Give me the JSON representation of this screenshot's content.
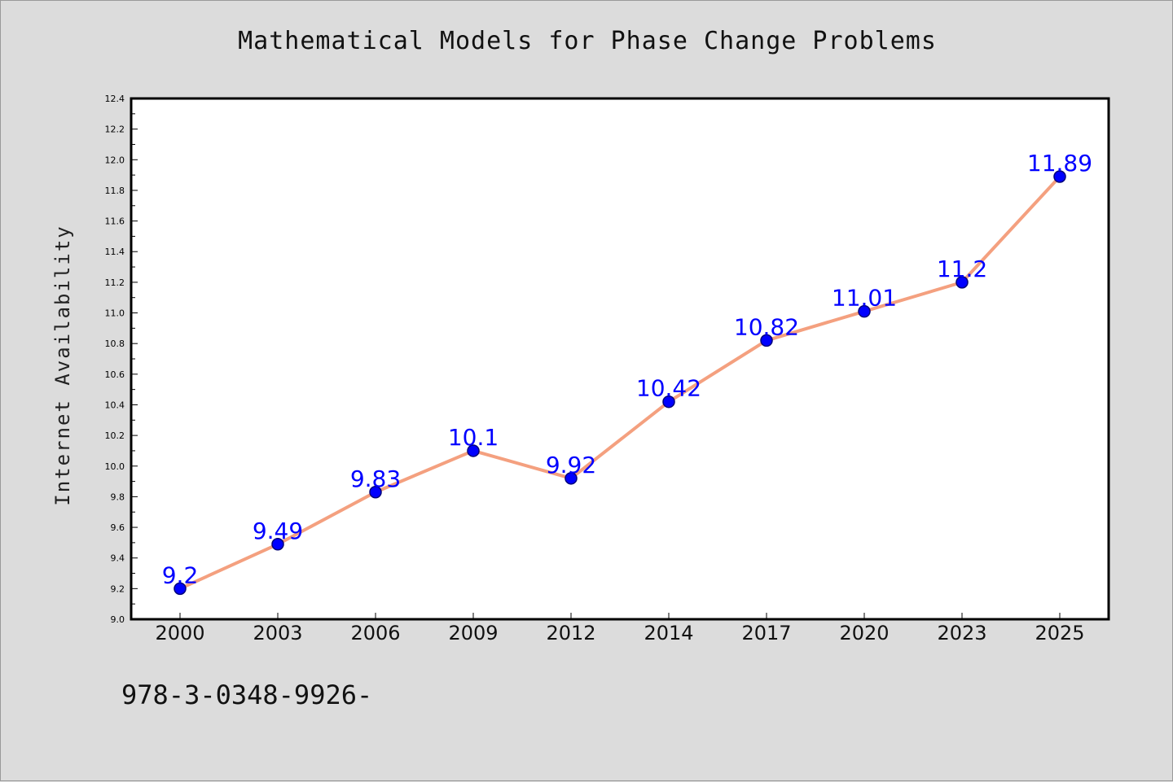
{
  "chart_data": {
    "type": "line",
    "title": "Mathematical Models for Phase Change Problems",
    "xlabel": "",
    "ylabel": "Internet Availability",
    "categories": [
      "2000",
      "2003",
      "2006",
      "2009",
      "2012",
      "2014",
      "2017",
      "2020",
      "2023",
      "2025"
    ],
    "series": [
      {
        "values": [
          9.2,
          9.49,
          9.83,
          10.1,
          9.92,
          10.42,
          10.82,
          11.01,
          11.2,
          11.89
        ],
        "data_labels": [
          "9.2",
          "9.49",
          "9.83",
          "10.1",
          "9.92",
          "10.42",
          "10.82",
          "11.01",
          "11.2",
          "11.89"
        ]
      }
    ],
    "ylim": [
      9.0,
      12.4
    ],
    "y_ticks": [
      "9.0",
      "9.2",
      "9.4",
      "9.6",
      "9.8",
      "10.0",
      "10.2",
      "10.4",
      "10.6",
      "10.8",
      "11.0",
      "11.2",
      "11.4",
      "11.6",
      "11.8",
      "12.0",
      "12.2",
      "12.4"
    ],
    "grid": false,
    "legend": "none",
    "colors": {
      "line": "#f4a07f",
      "marker": "#0000ff",
      "marker_edge": "#00007a",
      "data_label": "#0000ff",
      "plot_background": "#ffffff",
      "figure_background": "#dcdcdc"
    }
  },
  "footer_text": "978-3-0348-9926-"
}
